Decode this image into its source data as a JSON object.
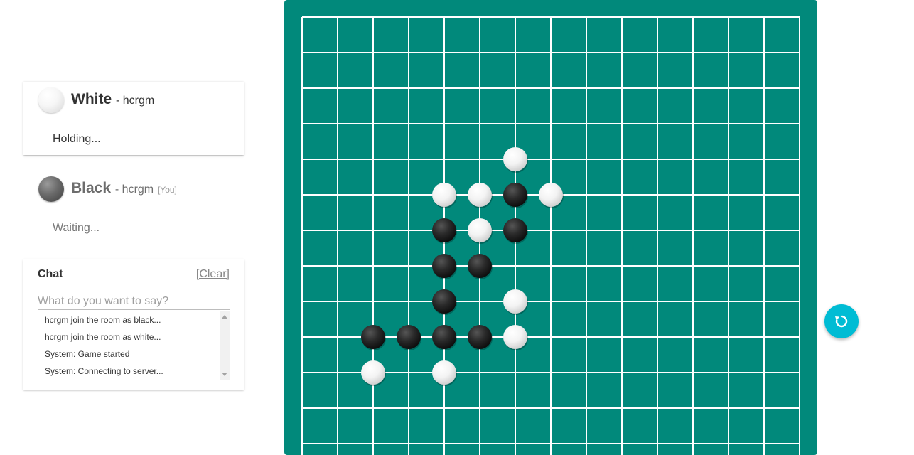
{
  "players": {
    "white": {
      "name": "White",
      "user": "- hcrgm",
      "status": "Holding..."
    },
    "black": {
      "name": "Black",
      "user": "- hcrgm",
      "you_tag": "[You]",
      "status": "Waiting..."
    }
  },
  "chat": {
    "title": "Chat",
    "clear_label": "[Clear]",
    "placeholder": "What do you want to say?",
    "messages": [
      "hcrgm join the room as black...",
      "hcrgm join the room as white...",
      "System: Game started",
      "System: Connecting to server..."
    ]
  },
  "board": {
    "stones": [
      {
        "col": 6,
        "row": 4,
        "color": "white"
      },
      {
        "col": 4,
        "row": 5,
        "color": "white"
      },
      {
        "col": 5,
        "row": 5,
        "color": "white"
      },
      {
        "col": 6,
        "row": 5,
        "color": "black"
      },
      {
        "col": 7,
        "row": 5,
        "color": "white"
      },
      {
        "col": 4,
        "row": 6,
        "color": "black"
      },
      {
        "col": 5,
        "row": 6,
        "color": "white"
      },
      {
        "col": 6,
        "row": 6,
        "color": "black"
      },
      {
        "col": 4,
        "row": 7,
        "color": "black"
      },
      {
        "col": 5,
        "row": 7,
        "color": "black"
      },
      {
        "col": 4,
        "row": 8,
        "color": "black"
      },
      {
        "col": 6,
        "row": 8,
        "color": "white"
      },
      {
        "col": 2,
        "row": 9,
        "color": "black"
      },
      {
        "col": 3,
        "row": 9,
        "color": "black"
      },
      {
        "col": 4,
        "row": 9,
        "color": "black"
      },
      {
        "col": 5,
        "row": 9,
        "color": "black"
      },
      {
        "col": 6,
        "row": 9,
        "color": "white"
      },
      {
        "col": 2,
        "row": 10,
        "color": "white"
      },
      {
        "col": 4,
        "row": 10,
        "color": "white"
      }
    ]
  },
  "colors": {
    "board": "#01897b",
    "grid": "#ffffff",
    "undo_button": "#00bcd4"
  },
  "icons": {
    "undo": "undo-icon"
  }
}
